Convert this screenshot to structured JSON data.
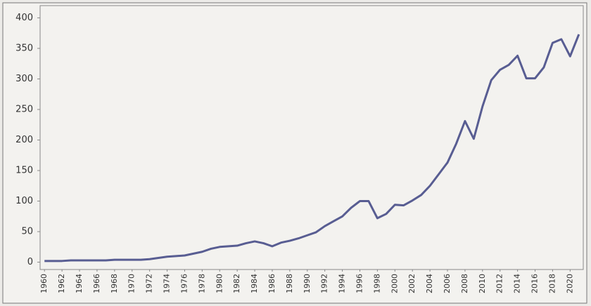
{
  "chart_data": {
    "type": "line",
    "x": [
      1960,
      1961,
      1962,
      1963,
      1964,
      1965,
      1966,
      1967,
      1968,
      1969,
      1970,
      1971,
      1972,
      1973,
      1974,
      1975,
      1976,
      1977,
      1978,
      1979,
      1980,
      1981,
      1982,
      1983,
      1984,
      1985,
      1986,
      1987,
      1988,
      1989,
      1990,
      1991,
      1992,
      1993,
      1994,
      1995,
      1996,
      1997,
      1998,
      1999,
      2000,
      2001,
      2002,
      2003,
      2004,
      2005,
      2006,
      2007,
      2008,
      2009,
      2010,
      2011,
      2012,
      2013,
      2014,
      2015,
      2016,
      2017,
      2018,
      2019,
      2020,
      2021
    ],
    "series": [
      {
        "color": "#585d92",
        "values": [
          2,
          2,
          2,
          3,
          3,
          3,
          3,
          3,
          4,
          4,
          4,
          4,
          5,
          7,
          9,
          10,
          11,
          14,
          17,
          22,
          25,
          26,
          27,
          31,
          34,
          31,
          26,
          32,
          35,
          39,
          44,
          49,
          59,
          67,
          75,
          89,
          100,
          100,
          72,
          79,
          94,
          93,
          101,
          110,
          125,
          144,
          163,
          194,
          231,
          202,
          255,
          298,
          315,
          323,
          338,
          301,
          301,
          319,
          359,
          365,
          337,
          373
        ]
      }
    ],
    "xlim": [
      1959.5,
      2021.5
    ],
    "xticks": [
      1960,
      1962,
      1964,
      1966,
      1968,
      1970,
      1972,
      1974,
      1976,
      1978,
      1980,
      1982,
      1984,
      1986,
      1988,
      1990,
      1992,
      1994,
      1996,
      1998,
      2000,
      2002,
      2004,
      2006,
      2008,
      2010,
      2012,
      2014,
      2016,
      2018,
      2020
    ],
    "ylim": [
      -12,
      420
    ],
    "yticks": [
      0,
      50,
      100,
      150,
      200,
      250,
      300,
      350,
      400
    ]
  }
}
